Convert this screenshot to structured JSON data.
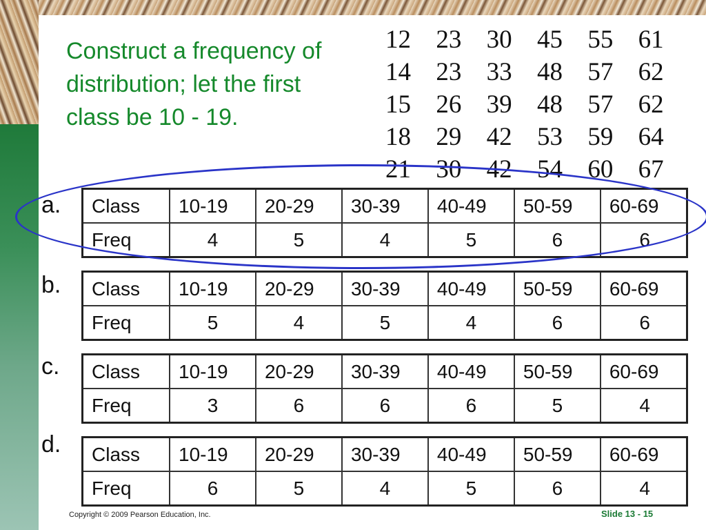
{
  "question": {
    "lines": [
      "Construct a frequency of",
      "distribution; let the first",
      "class be 10 - 19."
    ]
  },
  "data_values": [
    [
      "12",
      "23",
      "30",
      "45",
      "55",
      "61"
    ],
    [
      "14",
      "23",
      "33",
      "48",
      "57",
      "62"
    ],
    [
      "15",
      "26",
      "39",
      "48",
      "57",
      "62"
    ],
    [
      "18",
      "29",
      "42",
      "53",
      "59",
      "64"
    ],
    [
      "21",
      "30",
      "42",
      "54",
      "60",
      "67"
    ]
  ],
  "options": [
    {
      "label": "a.",
      "class_header": "Class",
      "freq_header": "Freq",
      "classes": [
        "10-19",
        "20-29",
        "30-39",
        "40-49",
        "50-59",
        "60-69"
      ],
      "freqs": [
        "4",
        "5",
        "4",
        "5",
        "6",
        "6"
      ]
    },
    {
      "label": "b.",
      "class_header": "Class",
      "freq_header": "Freq",
      "classes": [
        "10-19",
        "20-29",
        "30-39",
        "40-49",
        "50-59",
        "60-69"
      ],
      "freqs": [
        "5",
        "4",
        "5",
        "4",
        "6",
        "6"
      ]
    },
    {
      "label": "c.",
      "class_header": "Class",
      "freq_header": "Freq",
      "classes": [
        "10-19",
        "20-29",
        "30-39",
        "40-49",
        "50-59",
        "60-69"
      ],
      "freqs": [
        "3",
        "6",
        "6",
        "6",
        "5",
        "4"
      ]
    },
    {
      "label": "d.",
      "class_header": "Class",
      "freq_header": "Freq",
      "classes": [
        "10-19",
        "20-29",
        "30-39",
        "40-49",
        "50-59",
        "60-69"
      ],
      "freqs": [
        "6",
        "5",
        "4",
        "5",
        "6",
        "4"
      ]
    }
  ],
  "highlight_color": "#2a34c8",
  "title_color": "#15892b",
  "footer": {
    "copyright": "Copyright © 2009 Pearson Education, Inc.",
    "slide_number": "Slide 13 - 15"
  }
}
